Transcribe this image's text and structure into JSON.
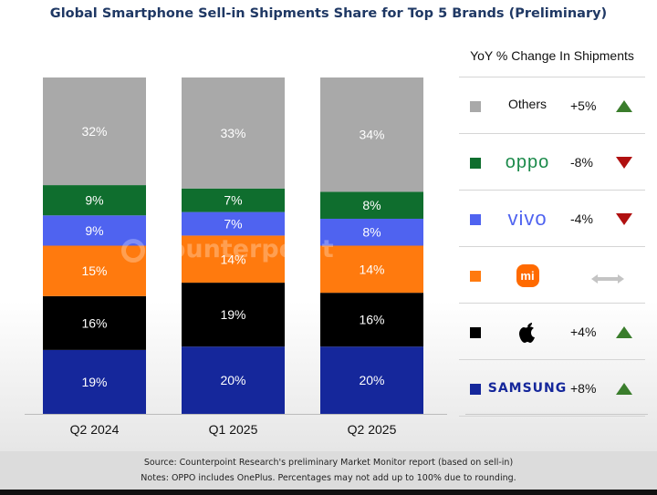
{
  "chart_data": {
    "type": "bar",
    "stacked": true,
    "title": "Global Smartphone Sell-in Shipments Share for Top 5 Brands (Preliminary)",
    "categories": [
      "Q2 2024",
      "Q1 2025",
      "Q2 2025"
    ],
    "series": [
      {
        "name": "Samsung",
        "color": "#15279b",
        "values": [
          19,
          20,
          20
        ]
      },
      {
        "name": "Apple",
        "color": "#000000",
        "values": [
          16,
          19,
          16
        ]
      },
      {
        "name": "Xiaomi",
        "color": "#ff7a0e",
        "values": [
          15,
          14,
          14
        ]
      },
      {
        "name": "vivo",
        "color": "#4f63f0",
        "values": [
          9,
          7,
          8
        ]
      },
      {
        "name": "OPPO",
        "color": "#0f6e2e",
        "values": [
          9,
          7,
          8
        ]
      },
      {
        "name": "Others",
        "color": "#a9a9a9",
        "values": [
          32,
          33,
          34
        ]
      }
    ],
    "ylim": [
      0,
      100
    ],
    "xlabel": "",
    "ylabel": "",
    "grid": false
  },
  "watermark": "Counterpoint",
  "legend": {
    "title": "YoY % Change In Shipments",
    "items": [
      {
        "brand": "Others",
        "color": "#a9a9a9",
        "change": "+5%",
        "trend": "up"
      },
      {
        "brand": "oppo",
        "color": "#0f6e2e",
        "change": "-8%",
        "trend": "down"
      },
      {
        "brand": "vivo",
        "color": "#4f63f0",
        "change": "-4%",
        "trend": "down"
      },
      {
        "brand": "mi",
        "color": "#ff7a0e",
        "change": "",
        "trend": "flat"
      },
      {
        "brand": "apple-logo",
        "color": "#000000",
        "change": "+4%",
        "trend": "up"
      },
      {
        "brand": "SAMSUNG",
        "color": "#15279b",
        "change": "+8%",
        "trend": "up"
      }
    ]
  },
  "footer": {
    "source": "Source: Counterpoint Research's preliminary Market Monitor report (based on sell-in)",
    "notes": "Notes: OPPO includes OnePlus. Percentages may not add up to 100% due to rounding."
  }
}
